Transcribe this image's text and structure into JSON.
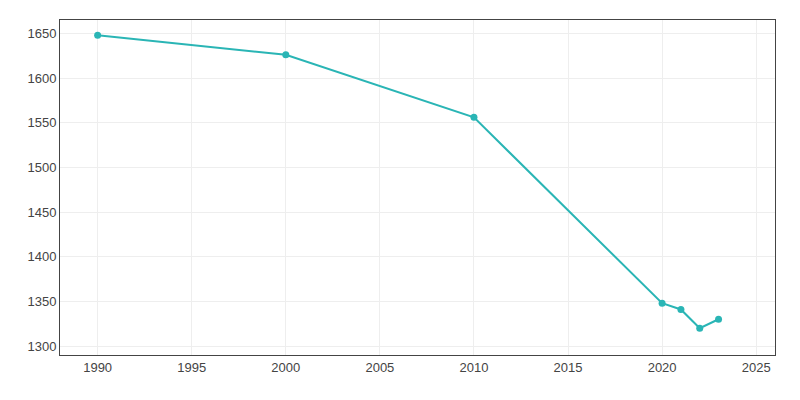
{
  "chart_data": {
    "type": "line",
    "x": [
      1990,
      2000,
      2010,
      2020,
      2021,
      2022,
      2023
    ],
    "values": [
      1648,
      1626,
      1556,
      1348,
      1341,
      1320,
      1330
    ],
    "color": "#2ab5b5",
    "marker": "circle",
    "line_style": "solid",
    "xlim": [
      1988,
      2026
    ],
    "ylim": [
      1290,
      1665
    ],
    "xticks": [
      1990,
      1995,
      2000,
      2005,
      2010,
      2015,
      2020,
      2025
    ],
    "yticks": [
      1300,
      1350,
      1400,
      1450,
      1500,
      1550,
      1600,
      1650
    ],
    "grid": true
  }
}
